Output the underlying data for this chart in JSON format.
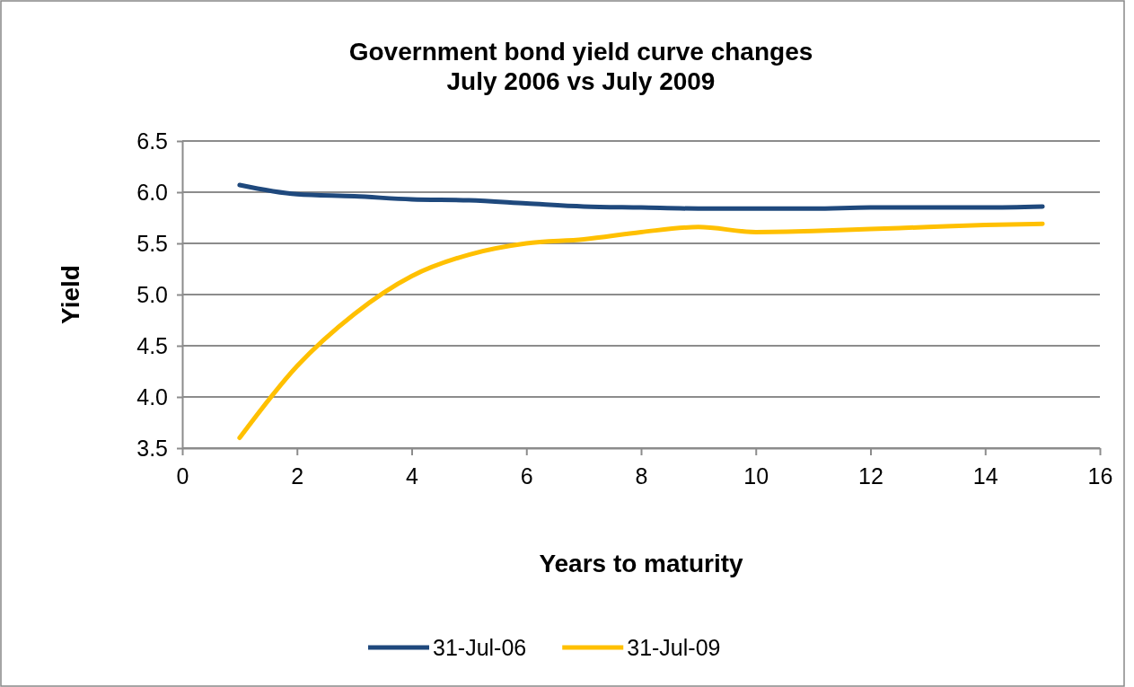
{
  "chart_data": {
    "type": "line",
    "title": "Government bond yield curve changes\nJuly 2006  vs July 2009",
    "xlabel": "Years to maturity",
    "ylabel": "Yield",
    "x": [
      1,
      2,
      3,
      4,
      5,
      6,
      7,
      8,
      9,
      10,
      11,
      12,
      13,
      14,
      15
    ],
    "series": [
      {
        "name": "31-Jul-06",
        "color": "#1f497d",
        "values": [
          6.07,
          5.98,
          5.96,
          5.93,
          5.92,
          5.89,
          5.86,
          5.85,
          5.84,
          5.84,
          5.84,
          5.85,
          5.85,
          5.85,
          5.86
        ]
      },
      {
        "name": "31-Jul-09",
        "color": "#ffc000",
        "values": [
          3.6,
          4.3,
          4.81,
          5.18,
          5.39,
          5.5,
          5.54,
          5.61,
          5.66,
          5.61,
          5.62,
          5.64,
          5.66,
          5.68,
          5.69
        ]
      }
    ],
    "xlim": [
      0,
      16
    ],
    "xticks": [
      0,
      2,
      4,
      6,
      8,
      10,
      12,
      14,
      16
    ],
    "ylim": [
      3.5,
      6.5
    ],
    "yticks": [
      {
        "value": 3.5,
        "label": "3.5"
      },
      {
        "value": 4,
        "label": "4.0"
      },
      {
        "value": 4.5,
        "label": "4.5"
      },
      {
        "value": 5,
        "label": "5.0"
      },
      {
        "value": 5.5,
        "label": "5.5"
      },
      {
        "value": 6,
        "label": "6.0"
      },
      {
        "value": 6.5,
        "label": "6.5"
      }
    ],
    "grid": "y",
    "legend": "bottom",
    "marker": "none",
    "line_style": "solid"
  }
}
